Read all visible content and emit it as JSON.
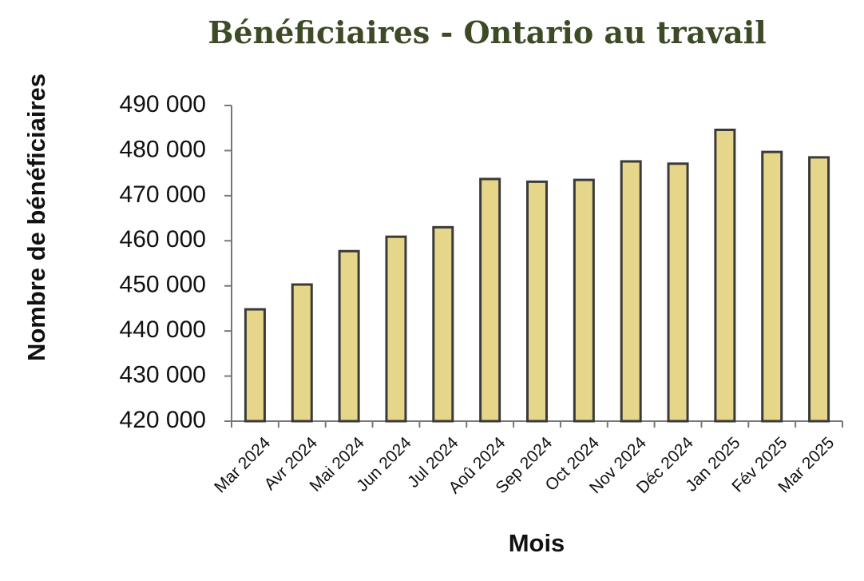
{
  "chart_data": {
    "type": "bar",
    "title": "Bénéficiaires - Ontario au travail",
    "xlabel": "Mois",
    "ylabel": "Nombre de bénéficiaires",
    "categories": [
      "Mar 2024",
      "Avr 2024",
      "Mai 2024",
      "Jun 2024",
      "Jul 2024",
      "Aoû 2024",
      "Sep 2024",
      "Oct 2024",
      "Nov 2024",
      "Déc 2024",
      "Jan 2025",
      "Fév 2025",
      "Mar 2025"
    ],
    "values": [
      444800,
      450300,
      457700,
      460900,
      463000,
      473700,
      473100,
      473500,
      477600,
      477100,
      484600,
      479700,
      478500
    ],
    "ylim": [
      420000,
      490000
    ],
    "yticks": [
      420000,
      430000,
      440000,
      450000,
      460000,
      470000,
      480000,
      490000
    ],
    "ytick_labels": [
      "420 000",
      "430 000",
      "440 000",
      "450 000",
      "460 000",
      "470 000",
      "480 000",
      "490 000"
    ],
    "grid": false,
    "legend": "none",
    "colors": {
      "bar_fill": "#e6d68a",
      "bar_stroke": "#3a3a3a",
      "axis": "#777777",
      "title": "#3d4a26"
    }
  }
}
